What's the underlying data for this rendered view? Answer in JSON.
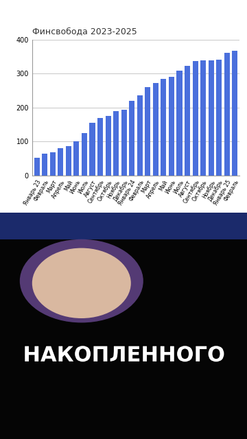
{
  "chart_data": {
    "type": "bar",
    "title": "Финсвобода 2023-2025",
    "categories": [
      "Январь 23",
      "Февраль",
      "Март",
      "Апрель",
      "Май",
      "Июнь",
      "Июль",
      "Август",
      "Сентябрь",
      "Октябрь",
      "Ноябрь",
      "Декабрь",
      "Январь 24",
      "Февраль",
      "Март",
      "Апрель",
      "Май",
      "Июнь",
      "Июль",
      "Август",
      "Сентябрь",
      "Октябрь",
      "Ноябрь",
      "Декабрь",
      "Январь 25",
      "Февраль"
    ],
    "values": [
      52,
      64,
      68,
      80,
      86,
      100,
      125,
      155,
      170,
      175,
      189,
      193,
      220,
      236,
      261,
      273,
      284,
      291,
      309,
      323,
      336,
      339,
      339,
      341,
      361,
      366
    ],
    "color": "#4a6fdc",
    "ylim": [
      0,
      400
    ],
    "yticks": [
      0,
      100,
      200,
      300,
      400
    ],
    "grid": true
  },
  "caption": "НАКОПЛЕННОГО"
}
